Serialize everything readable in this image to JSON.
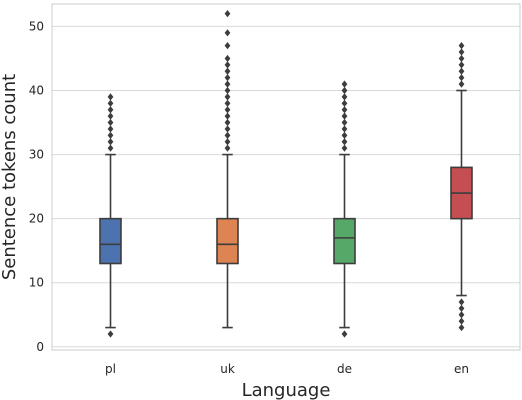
{
  "chart_data": {
    "type": "box",
    "title": "",
    "xlabel": "Language",
    "ylabel": "Sentence tokens count",
    "ylim": [
      -0.5,
      53.5
    ],
    "yticks": [
      0,
      10,
      20,
      30,
      40,
      50
    ],
    "grid": true,
    "categories": [
      "pl",
      "uk",
      "de",
      "en"
    ],
    "colors": [
      "#4c72b0",
      "#dd8452",
      "#55a868",
      "#c44e52"
    ],
    "boxes": [
      {
        "name": "pl",
        "whisker_low": 3,
        "q1": 13,
        "median": 16,
        "q3": 20,
        "whisker_high": 30,
        "outliers": [
          2,
          31,
          32,
          33,
          34,
          35,
          36,
          37,
          38,
          39
        ]
      },
      {
        "name": "uk",
        "whisker_low": 3,
        "q1": 13,
        "median": 16,
        "q3": 20,
        "whisker_high": 30,
        "outliers": [
          31,
          32,
          33,
          34,
          35,
          36,
          37,
          38,
          39,
          40,
          41,
          42,
          43,
          44,
          45,
          47,
          49,
          52
        ]
      },
      {
        "name": "de",
        "whisker_low": 3,
        "q1": 13,
        "median": 17,
        "q3": 20,
        "whisker_high": 30,
        "outliers": [
          2,
          31,
          32,
          33,
          34,
          35,
          36,
          37,
          38,
          39,
          40,
          41
        ]
      },
      {
        "name": "en",
        "whisker_low": 8,
        "q1": 20,
        "median": 24,
        "q3": 28,
        "whisker_high": 40,
        "outliers": [
          3,
          4,
          5,
          6,
          7,
          41,
          42,
          43,
          44,
          45,
          46,
          47
        ]
      }
    ]
  }
}
